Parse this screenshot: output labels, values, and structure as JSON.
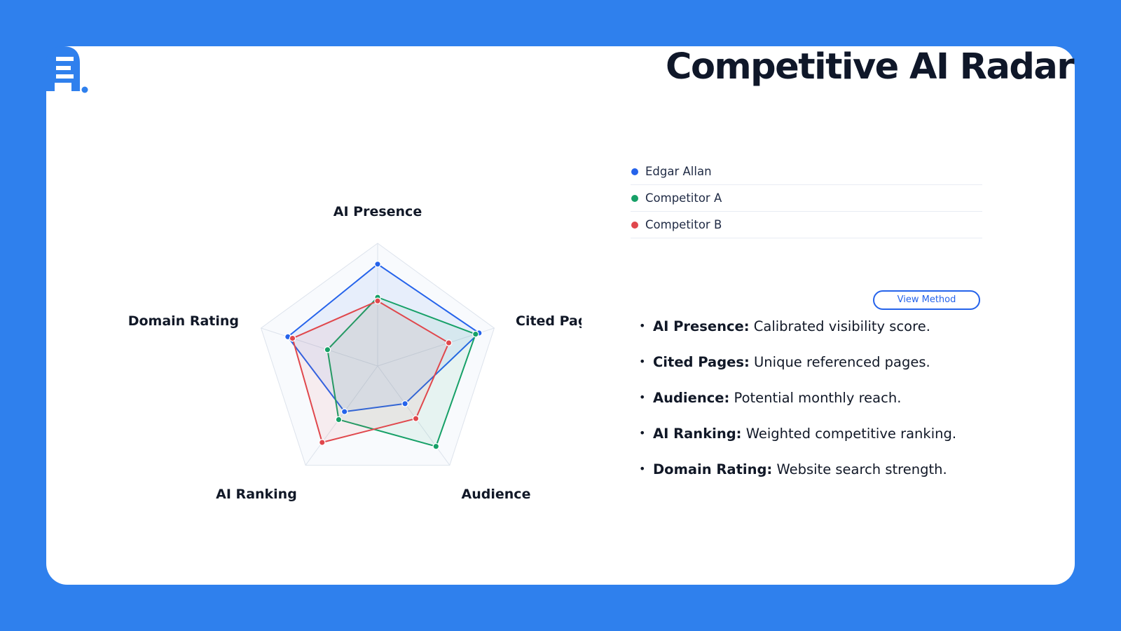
{
  "slide": {
    "title": "Competitive AI Radar",
    "logo": {
      "icon": "brand-logo-E-icon",
      "color": "#2f80ed"
    },
    "background_color": "#2f80ed",
    "view_method_label": "View Method"
  },
  "legend": [
    {
      "name": "Edgar Allan",
      "color": "#2563eb"
    },
    {
      "name": "Competitor A",
      "color": "#16a067"
    },
    {
      "name": "Competitor B",
      "color": "#e0474c"
    }
  ],
  "definitions": [
    {
      "term": "AI Presence:",
      "text": "Calibrated visibility score."
    },
    {
      "term": "Cited Pages:",
      "text": "Unique referenced pages."
    },
    {
      "term": "Audience:",
      "text": "Potential monthly reach."
    },
    {
      "term": "AI Ranking:",
      "text": "Weighted competitive ranking."
    },
    {
      "term": "Domain Rating:",
      "text": "Website search strength."
    }
  ],
  "chart_data": {
    "type": "radar",
    "axes": [
      "AI Presence",
      "Cited Pages",
      "Audience",
      "AI Ranking",
      "Domain Rating"
    ],
    "range": [
      0,
      1
    ],
    "grid_levels": 5,
    "legend_position": "right",
    "series": [
      {
        "name": "Edgar Allan",
        "color": "#2563eb",
        "values": [
          0.83,
          0.87,
          0.38,
          0.46,
          0.77
        ]
      },
      {
        "name": "Competitor A",
        "color": "#16a067",
        "values": [
          0.56,
          0.84,
          0.81,
          0.54,
          0.43
        ]
      },
      {
        "name": "Competitor B",
        "color": "#e0474c",
        "values": [
          0.53,
          0.61,
          0.53,
          0.77,
          0.73
        ]
      }
    ]
  }
}
